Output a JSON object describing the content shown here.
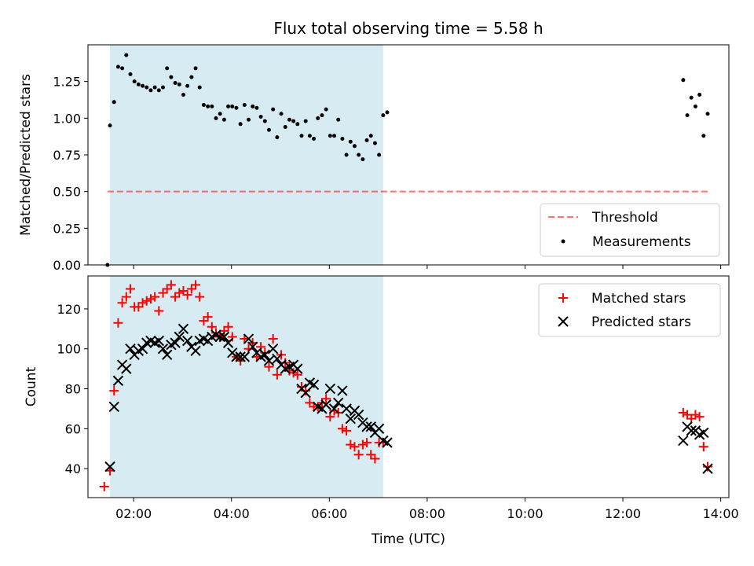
{
  "title": "Flux total observing time = 5.58 h",
  "xlabel": "Time (UTC)",
  "x_ticks": [
    "02:00",
    "04:00",
    "06:00",
    "08:00",
    "10:00",
    "12:00",
    "14:00"
  ],
  "colors": {
    "span": "#add8e6",
    "threshold": "#ff0000",
    "measurements": "#000000",
    "matched": "#ff0000",
    "predicted": "#000000"
  },
  "chart_data": [
    {
      "type": "scatter",
      "ylabel": "Matched/Predicted stars",
      "xlim": [
        "01:04",
        "14:10"
      ],
      "ylim": [
        0,
        1.5
      ],
      "y_ticks": [
        "0.00",
        "0.25",
        "0.50",
        "0.75",
        "1.00",
        "1.25"
      ],
      "shaded_span": [
        "01:31",
        "07:06"
      ],
      "threshold": {
        "label": "Threshold",
        "value": 0.5,
        "x": [
          "01:28",
          "13:45"
        ]
      },
      "legend": "lower right",
      "series": [
        {
          "name": "Measurements",
          "points": [
            [
              "01:28",
              0.0
            ],
            [
              "01:31",
              0.95
            ],
            [
              "01:36",
              1.11
            ],
            [
              "01:41",
              1.35
            ],
            [
              "01:46",
              1.34
            ],
            [
              "01:51",
              1.43
            ],
            [
              "01:56",
              1.3
            ],
            [
              "02:01",
              1.25
            ],
            [
              "02:06",
              1.23
            ],
            [
              "02:11",
              1.22
            ],
            [
              "02:16",
              1.21
            ],
            [
              "02:21",
              1.19
            ],
            [
              "02:26",
              1.21
            ],
            [
              "02:31",
              1.19
            ],
            [
              "02:36",
              1.21
            ],
            [
              "02:41",
              1.34
            ],
            [
              "02:46",
              1.28
            ],
            [
              "02:51",
              1.24
            ],
            [
              "02:56",
              1.23
            ],
            [
              "03:01",
              1.16
            ],
            [
              "03:06",
              1.22
            ],
            [
              "03:11",
              1.28
            ],
            [
              "03:16",
              1.34
            ],
            [
              "03:21",
              1.21
            ],
            [
              "03:26",
              1.09
            ],
            [
              "03:31",
              1.08
            ],
            [
              "03:36",
              1.08
            ],
            [
              "03:41",
              1.0
            ],
            [
              "03:46",
              1.03
            ],
            [
              "03:51",
              0.99
            ],
            [
              "03:56",
              1.08
            ],
            [
              "04:01",
              1.08
            ],
            [
              "04:06",
              1.07
            ],
            [
              "04:11",
              0.96
            ],
            [
              "04:16",
              1.09
            ],
            [
              "04:21",
              0.99
            ],
            [
              "04:26",
              1.08
            ],
            [
              "04:31",
              1.07
            ],
            [
              "04:36",
              1.01
            ],
            [
              "04:41",
              0.98
            ],
            [
              "04:46",
              0.92
            ],
            [
              "04:51",
              1.06
            ],
            [
              "04:56",
              0.87
            ],
            [
              "05:01",
              1.03
            ],
            [
              "05:06",
              0.94
            ],
            [
              "05:11",
              0.99
            ],
            [
              "05:16",
              0.98
            ],
            [
              "05:21",
              0.96
            ],
            [
              "05:26",
              0.88
            ],
            [
              "05:31",
              0.98
            ],
            [
              "05:36",
              0.88
            ],
            [
              "05:41",
              0.86
            ],
            [
              "05:46",
              1.0
            ],
            [
              "05:51",
              1.02
            ],
            [
              "05:56",
              1.06
            ],
            [
              "06:01",
              0.88
            ],
            [
              "06:06",
              0.88
            ],
            [
              "06:11",
              0.99
            ],
            [
              "06:16",
              0.86
            ],
            [
              "06:21",
              0.75
            ],
            [
              "06:26",
              0.84
            ],
            [
              "06:31",
              0.81
            ],
            [
              "06:36",
              0.75
            ],
            [
              "06:41",
              0.72
            ],
            [
              "06:46",
              0.85
            ],
            [
              "06:51",
              0.88
            ],
            [
              "06:56",
              0.83
            ],
            [
              "07:01",
              0.75
            ],
            [
              "07:06",
              1.02
            ],
            [
              "07:11",
              1.04
            ],
            [
              "13:14",
              1.26
            ],
            [
              "13:19",
              1.02
            ],
            [
              "13:24",
              1.14
            ],
            [
              "13:29",
              1.08
            ],
            [
              "13:34",
              1.16
            ],
            [
              "13:39",
              0.88
            ],
            [
              "13:44",
              1.03
            ]
          ]
        }
      ]
    },
    {
      "type": "scatter",
      "ylabel": "Count",
      "xlim": [
        "01:04",
        "14:10"
      ],
      "ylim": [
        25.5,
        136.5
      ],
      "y_ticks": [
        "40",
        "60",
        "80",
        "100",
        "120"
      ],
      "shaded_span": [
        "01:31",
        "07:06"
      ],
      "legend": "upper right",
      "series": [
        {
          "name": "Matched stars",
          "points": [
            [
              "01:24",
              31
            ],
            [
              "01:31",
              39
            ],
            [
              "01:36",
              79
            ],
            [
              "01:41",
              113
            ],
            [
              "01:46",
              123
            ],
            [
              "01:51",
              126
            ],
            [
              "01:56",
              130
            ],
            [
              "02:01",
              121
            ],
            [
              "02:06",
              121
            ],
            [
              "02:11",
              123
            ],
            [
              "02:16",
              124
            ],
            [
              "02:21",
              125
            ],
            [
              "02:26",
              126
            ],
            [
              "02:31",
              119
            ],
            [
              "02:36",
              128
            ],
            [
              "02:41",
              130
            ],
            [
              "02:46",
              132
            ],
            [
              "02:51",
              126
            ],
            [
              "02:56",
              128
            ],
            [
              "03:01",
              129
            ],
            [
              "03:06",
              127
            ],
            [
              "03:11",
              130
            ],
            [
              "03:16",
              132
            ],
            [
              "03:21",
              126
            ],
            [
              "03:26",
              114
            ],
            [
              "03:31",
              116
            ],
            [
              "03:36",
              111
            ],
            [
              "03:41",
              108
            ],
            [
              "03:46",
              106
            ],
            [
              "03:51",
              109
            ],
            [
              "03:56",
              111
            ],
            [
              "04:01",
              106
            ],
            [
              "04:06",
              96
            ],
            [
              "04:11",
              94
            ],
            [
              "04:16",
              105
            ],
            [
              "04:21",
              100
            ],
            [
              "04:26",
              103
            ],
            [
              "04:31",
              96
            ],
            [
              "04:36",
              101
            ],
            [
              "04:41",
              98
            ],
            [
              "04:46",
              91
            ],
            [
              "04:51",
              105
            ],
            [
              "04:56",
              87
            ],
            [
              "05:01",
              97
            ],
            [
              "05:06",
              93
            ],
            [
              "05:11",
              89
            ],
            [
              "05:16",
              88
            ],
            [
              "05:21",
              87
            ],
            [
              "05:26",
              81
            ],
            [
              "05:31",
              79
            ],
            [
              "05:36",
              73
            ],
            [
              "05:41",
              71
            ],
            [
              "05:46",
              71
            ],
            [
              "05:51",
              73
            ],
            [
              "05:56",
              75
            ],
            [
              "06:01",
              66
            ],
            [
              "06:06",
              69
            ],
            [
              "06:11",
              68
            ],
            [
              "06:16",
              60
            ],
            [
              "06:21",
              59
            ],
            [
              "06:26",
              52
            ],
            [
              "06:31",
              51
            ],
            [
              "06:36",
              47
            ],
            [
              "06:41",
              52
            ],
            [
              "06:46",
              53
            ],
            [
              "06:51",
              47
            ],
            [
              "06:56",
              45
            ],
            [
              "07:01",
              53
            ],
            [
              "07:06",
              53
            ],
            [
              "13:14",
              68
            ],
            [
              "13:19",
              67
            ],
            [
              "13:24",
              65
            ],
            [
              "13:29",
              67
            ],
            [
              "13:34",
              66
            ],
            [
              "13:39",
              51
            ],
            [
              "13:44",
              41
            ]
          ]
        },
        {
          "name": "Predicted stars",
          "points": [
            [
              "01:31",
              41
            ],
            [
              "01:36",
              71
            ],
            [
              "01:41",
              84
            ],
            [
              "01:46",
              92
            ],
            [
              "01:51",
              90
            ],
            [
              "01:56",
              100
            ],
            [
              "02:01",
              97
            ],
            [
              "02:06",
              99
            ],
            [
              "02:11",
              100
            ],
            [
              "02:16",
              103
            ],
            [
              "02:21",
              104
            ],
            [
              "02:26",
              103
            ],
            [
              "02:31",
              104
            ],
            [
              "02:36",
              100
            ],
            [
              "02:41",
              97
            ],
            [
              "02:46",
              102
            ],
            [
              "02:51",
              103
            ],
            [
              "02:56",
              106
            ],
            [
              "03:01",
              110
            ],
            [
              "03:06",
              104
            ],
            [
              "03:11",
              101
            ],
            [
              "03:16",
              99
            ],
            [
              "03:21",
              104
            ],
            [
              "03:26",
              105
            ],
            [
              "03:31",
              104
            ],
            [
              "03:36",
              106
            ],
            [
              "03:41",
              107
            ],
            [
              "03:46",
              106
            ],
            [
              "03:51",
              106
            ],
            [
              "03:56",
              103
            ],
            [
              "04:01",
              98
            ],
            [
              "04:06",
              96
            ],
            [
              "04:11",
              96
            ],
            [
              "04:16",
              96
            ],
            [
              "04:21",
              105
            ],
            [
              "04:26",
              101
            ],
            [
              "04:31",
              98
            ],
            [
              "04:36",
              96
            ],
            [
              "04:41",
              97
            ],
            [
              "04:46",
              94
            ],
            [
              "04:51",
              100
            ],
            [
              "04:56",
              95
            ],
            [
              "05:01",
              92
            ],
            [
              "05:06",
              90
            ],
            [
              "05:11",
              91
            ],
            [
              "05:16",
              92
            ],
            [
              "05:21",
              90
            ],
            [
              "05:26",
              80
            ],
            [
              "05:31",
              78
            ],
            [
              "05:36",
              83
            ],
            [
              "05:41",
              82
            ],
            [
              "05:46",
              71
            ],
            [
              "05:51",
              70
            ],
            [
              "05:56",
              72
            ],
            [
              "06:01",
              80
            ],
            [
              "06:06",
              70
            ],
            [
              "06:11",
              73
            ],
            [
              "06:16",
              79
            ],
            [
              "06:21",
              70
            ],
            [
              "06:26",
              65
            ],
            [
              "06:31",
              69
            ],
            [
              "06:36",
              67
            ],
            [
              "06:41",
              63
            ],
            [
              "06:46",
              61
            ],
            [
              "06:51",
              61
            ],
            [
              "06:56",
              58
            ],
            [
              "07:01",
              60
            ],
            [
              "07:06",
              54
            ],
            [
              "07:11",
              53
            ],
            [
              "13:14",
              54
            ],
            [
              "13:19",
              61
            ],
            [
              "13:24",
              59
            ],
            [
              "13:29",
              59
            ],
            [
              "13:34",
              57
            ],
            [
              "13:39",
              58
            ],
            [
              "13:44",
              40
            ]
          ]
        }
      ]
    }
  ]
}
